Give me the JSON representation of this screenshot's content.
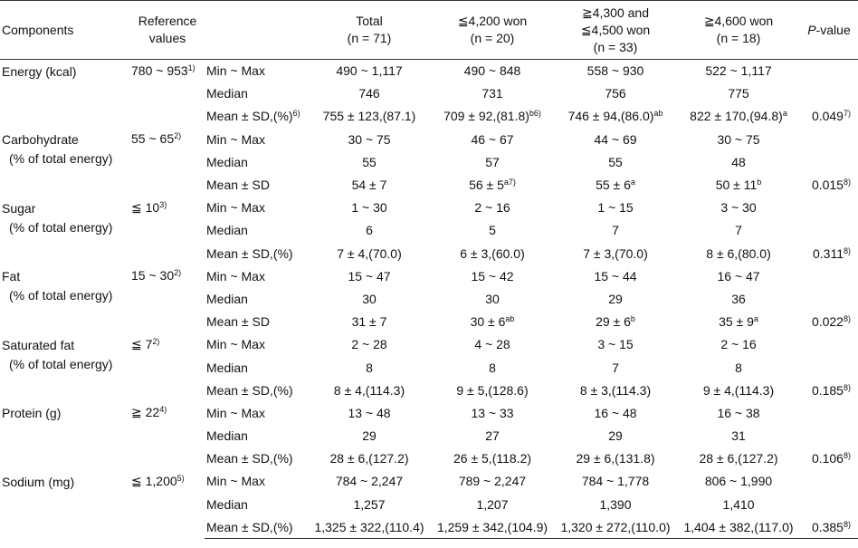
{
  "header": {
    "components": "Components",
    "reference": [
      "Reference",
      "values"
    ],
    "groups": [
      {
        "lines": [
          "Total",
          "(n = 71)"
        ]
      },
      {
        "lines": [
          "≦4,200 won",
          "(n = 20)"
        ]
      },
      {
        "lines": [
          "≧4,300 and",
          "≦4,500 won",
          "(n = 33)"
        ]
      },
      {
        "lines": [
          "≧4,600 won",
          "(n = 18)"
        ]
      }
    ],
    "pvalue_italic": "P",
    "pvalue_rest": "-value"
  },
  "rows": [
    {
      "name": [
        "Energy (kcal)"
      ],
      "ref": "780 ~ 953",
      "ref_sup": "1)",
      "stats": [
        {
          "label": "Min ~ Max",
          "cells": [
            [
              "490 ~ 1,117",
              ""
            ],
            [
              "490 ~ 848",
              ""
            ],
            [
              "558 ~ 930",
              ""
            ],
            [
              "522 ~ 1,117",
              ""
            ]
          ],
          "p": [
            "",
            ""
          ]
        },
        {
          "label": "Median",
          "cells": [
            [
              "746",
              ""
            ],
            [
              "731",
              ""
            ],
            [
              "756",
              ""
            ],
            [
              "775",
              ""
            ]
          ],
          "p": [
            "",
            ""
          ]
        },
        {
          "label": "Mean ± SD,(%)",
          "label_sup": "6)",
          "cells": [
            [
              "755 ± 123,(87.1)",
              ""
            ],
            [
              "709 ± 92,(81.8)",
              "b6)"
            ],
            [
              "746 ± 94,(86.0)",
              "ab"
            ],
            [
              "822 ± 170,(94.8)",
              "a"
            ]
          ],
          "p": [
            "0.049",
            "7)"
          ]
        }
      ]
    },
    {
      "name": [
        "Carbohydrate",
        "(% of total energy)"
      ],
      "ref": "55 ~ 65",
      "ref_sup": "2)",
      "stats": [
        {
          "label": "Min ~ Max",
          "cells": [
            [
              "30 ~ 75",
              ""
            ],
            [
              "46 ~ 67",
              ""
            ],
            [
              "44 ~ 69",
              ""
            ],
            [
              "30 ~ 75",
              ""
            ]
          ],
          "p": [
            "",
            ""
          ]
        },
        {
          "label": "Median",
          "cells": [
            [
              "55",
              ""
            ],
            [
              "57",
              ""
            ],
            [
              "55",
              ""
            ],
            [
              "48",
              ""
            ]
          ],
          "p": [
            "",
            ""
          ]
        },
        {
          "label": "Mean ± SD",
          "label_sup": "",
          "cells": [
            [
              "54 ± 7",
              ""
            ],
            [
              "56 ± 5",
              "a7)"
            ],
            [
              "55 ± 6",
              "a"
            ],
            [
              "50 ± 11",
              "b"
            ]
          ],
          "p": [
            "0.015",
            "8)"
          ]
        }
      ]
    },
    {
      "name": [
        "Sugar",
        "(% of total energy)"
      ],
      "ref": "≦ 10",
      "ref_sup": "3)",
      "stats": [
        {
          "label": "Min ~ Max",
          "cells": [
            [
              "1 ~ 30",
              ""
            ],
            [
              "2 ~ 16",
              ""
            ],
            [
              "1 ~ 15",
              ""
            ],
            [
              "3 ~ 30",
              ""
            ]
          ],
          "p": [
            "",
            ""
          ]
        },
        {
          "label": "Median",
          "cells": [
            [
              "6",
              ""
            ],
            [
              "5",
              ""
            ],
            [
              "7",
              ""
            ],
            [
              "7",
              ""
            ]
          ],
          "p": [
            "",
            ""
          ]
        },
        {
          "label": "Mean ± SD,(%)",
          "label_sup": "",
          "cells": [
            [
              "7 ± 4,(70.0)",
              ""
            ],
            [
              "6 ± 3,(60.0)",
              ""
            ],
            [
              "7 ± 3,(70.0)",
              ""
            ],
            [
              "8 ± 6,(80.0)",
              ""
            ]
          ],
          "p": [
            "0.311",
            "8)"
          ]
        }
      ]
    },
    {
      "name": [
        "Fat",
        "(% of total energy)"
      ],
      "ref": "15 ~ 30",
      "ref_sup": "2)",
      "stats": [
        {
          "label": "Min ~ Max",
          "cells": [
            [
              "15 ~ 47",
              ""
            ],
            [
              "15 ~ 42",
              ""
            ],
            [
              "15 ~ 44",
              ""
            ],
            [
              "16 ~ 47",
              ""
            ]
          ],
          "p": [
            "",
            ""
          ]
        },
        {
          "label": "Median",
          "cells": [
            [
              "30",
              ""
            ],
            [
              "30",
              ""
            ],
            [
              "29",
              ""
            ],
            [
              "36",
              ""
            ]
          ],
          "p": [
            "",
            ""
          ]
        },
        {
          "label": "Mean ± SD",
          "label_sup": "",
          "cells": [
            [
              "31 ± 7",
              ""
            ],
            [
              "30 ± 6",
              "ab"
            ],
            [
              "29 ± 6",
              "b"
            ],
            [
              "35 ± 9",
              "a"
            ]
          ],
          "p": [
            "0.022",
            "8)"
          ]
        }
      ]
    },
    {
      "name": [
        "Saturated fat",
        "(% of total energy)"
      ],
      "ref": "≦ 7",
      "ref_sup": "2)",
      "stats": [
        {
          "label": "Min ~ Max",
          "cells": [
            [
              "2 ~ 28",
              ""
            ],
            [
              "4 ~ 28",
              ""
            ],
            [
              "3 ~ 15",
              ""
            ],
            [
              "2 ~ 16",
              ""
            ]
          ],
          "p": [
            "",
            ""
          ]
        },
        {
          "label": "Median",
          "cells": [
            [
              "8",
              ""
            ],
            [
              "8",
              ""
            ],
            [
              "7",
              ""
            ],
            [
              "8",
              ""
            ]
          ],
          "p": [
            "",
            ""
          ]
        },
        {
          "label": "Mean ± SD,(%)",
          "label_sup": "",
          "cells": [
            [
              "8 ± 4,(114.3)",
              ""
            ],
            [
              "9 ± 5,(128.6)",
              ""
            ],
            [
              "8 ± 3,(114.3)",
              ""
            ],
            [
              "9 ± 4,(114.3)",
              ""
            ]
          ],
          "p": [
            "0.185",
            "8)"
          ]
        }
      ]
    },
    {
      "name": [
        "Protein (g)"
      ],
      "ref": "≧ 22",
      "ref_sup": "4)",
      "stats": [
        {
          "label": "Min ~ Max",
          "cells": [
            [
              "13 ~ 48",
              ""
            ],
            [
              "13 ~ 33",
              ""
            ],
            [
              "16 ~ 48",
              ""
            ],
            [
              "16 ~ 38",
              ""
            ]
          ],
          "p": [
            "",
            ""
          ]
        },
        {
          "label": "Median",
          "cells": [
            [
              "29",
              ""
            ],
            [
              "27",
              ""
            ],
            [
              "29",
              ""
            ],
            [
              "31",
              ""
            ]
          ],
          "p": [
            "",
            ""
          ]
        },
        {
          "label": "Mean ± SD,(%)",
          "label_sup": "",
          "cells": [
            [
              "28 ± 6,(127.2)",
              ""
            ],
            [
              "26 ± 5,(118.2)",
              ""
            ],
            [
              "29 ± 6,(131.8)",
              ""
            ],
            [
              "28 ± 6,(127.2)",
              ""
            ]
          ],
          "p": [
            "0.106",
            "8)"
          ]
        }
      ]
    },
    {
      "name": [
        "Sodium (mg)"
      ],
      "ref": "≦ 1,200",
      "ref_sup": "5)",
      "stats": [
        {
          "label": "Min ~ Max",
          "cells": [
            [
              "784 ~ 2,247",
              ""
            ],
            [
              "789 ~ 2,247",
              ""
            ],
            [
              "784 ~ 1,778",
              ""
            ],
            [
              "806 ~ 1,990",
              ""
            ]
          ],
          "p": [
            "",
            ""
          ]
        },
        {
          "label": "Median",
          "cells": [
            [
              "1,257",
              ""
            ],
            [
              "1,207",
              ""
            ],
            [
              "1,390",
              ""
            ],
            [
              "1,410",
              ""
            ]
          ],
          "p": [
            "",
            ""
          ]
        },
        {
          "label": "Mean ± SD,(%)",
          "label_sup": "",
          "cells": [
            [
              "1,325 ± 322,(110.4)",
              ""
            ],
            [
              "1,259 ± 342,(104.9)",
              ""
            ],
            [
              "1,320 ± 272,(110.0)",
              ""
            ],
            [
              "1,404 ± 382,(117.0)",
              ""
            ]
          ],
          "p": [
            "0.385",
            "8)"
          ]
        }
      ]
    }
  ]
}
